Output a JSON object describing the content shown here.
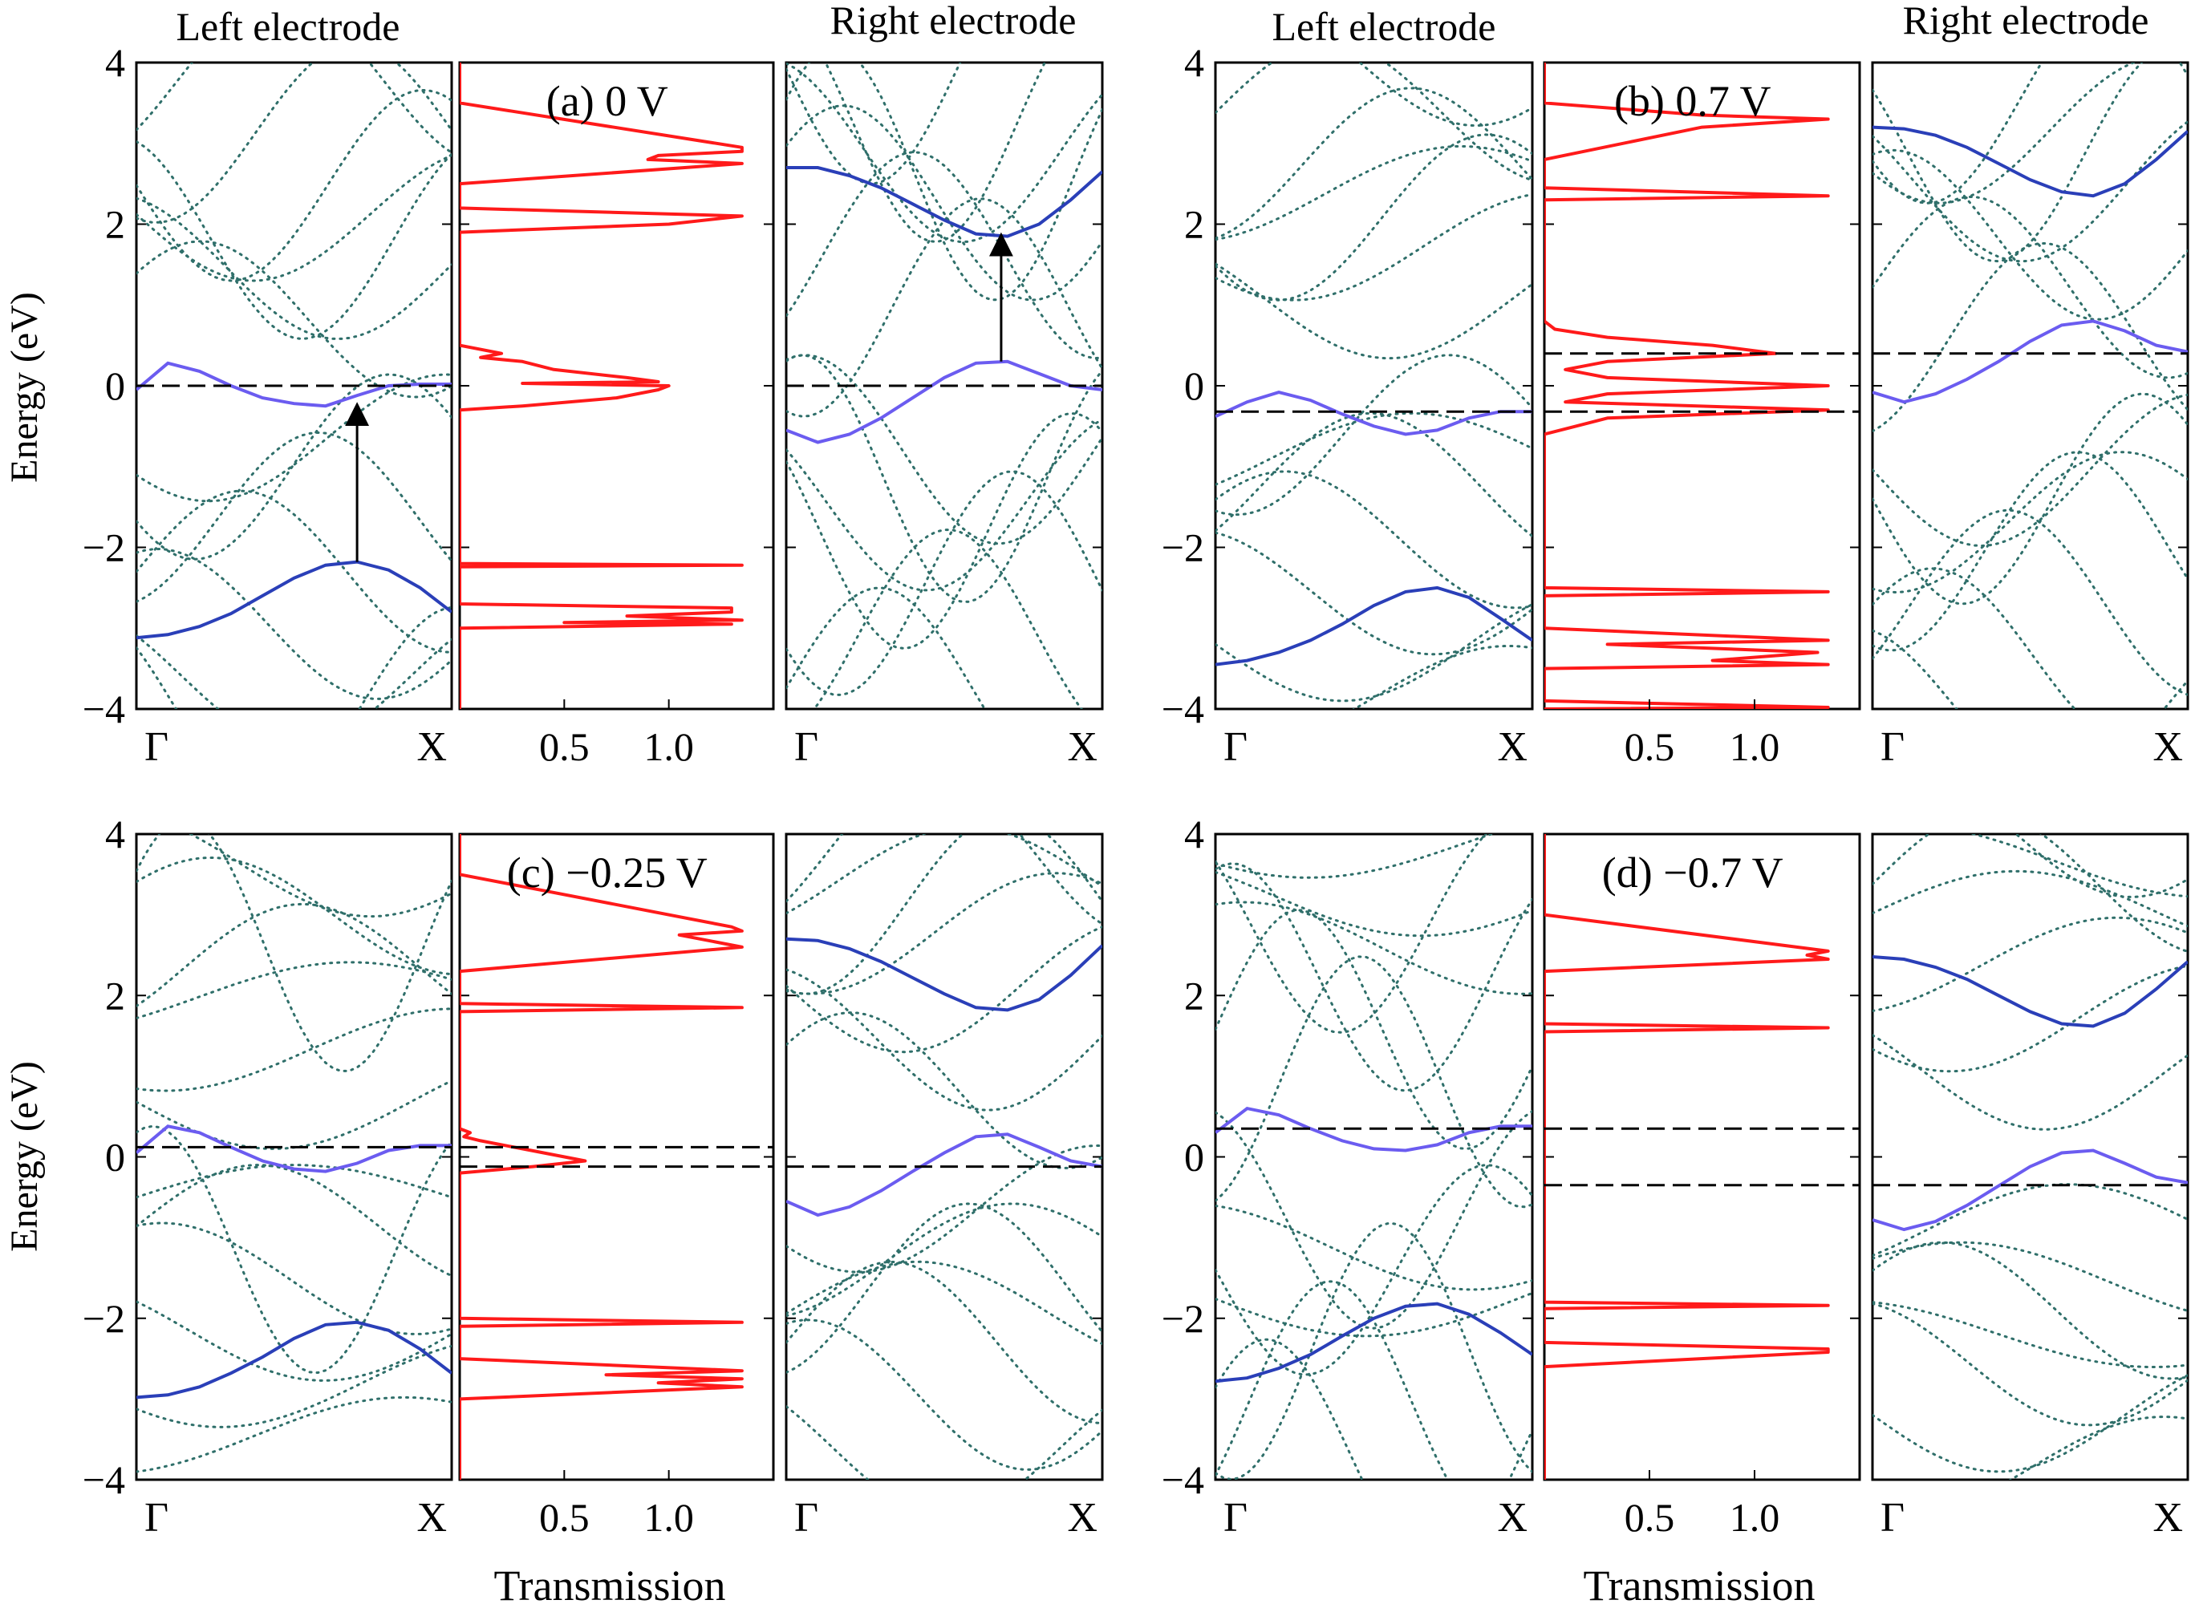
{
  "figure": {
    "y_axis_label": "Energy (eV)",
    "x_axis_label_transmission": "Transmission",
    "left_electrode_title": "Left electrode",
    "right_electrode_title": "Right electrode",
    "band_tick_start": "Γ",
    "band_tick_end": "X",
    "energy_ticks": [
      "4",
      "2",
      "0",
      "−2",
      "−4"
    ],
    "transmission_ticks": [
      "0.5",
      "1.0"
    ]
  },
  "colors": {
    "band_highlight": "#6b5cf0",
    "band_dark": "#2a3fb8",
    "band_dotted": "#2f6f6a",
    "transmission": "#ff1a1a",
    "fermi_level": "#000000"
  },
  "chart_data": [
    {
      "type": "line",
      "panel": "a",
      "title": "(a) 0 V",
      "bias_V": 0,
      "ylabel": "Energy (eV)",
      "xlabel": "",
      "ylim": [
        -4,
        4
      ],
      "transmission_xlim": [
        0,
        1.5
      ],
      "fermi_levels_left": [
        0
      ],
      "fermi_levels_right": [
        0
      ],
      "left_bands": {
        "upper": {
          "k": [
            0,
            0.1,
            0.2,
            0.3,
            0.4,
            0.5,
            0.6,
            0.7,
            0.8,
            0.9,
            1.0
          ],
          "E": [
            -0.05,
            0.28,
            0.18,
            0.0,
            -0.15,
            -0.22,
            -0.25,
            -0.12,
            0.0,
            0.02,
            0.02
          ]
        },
        "lower": {
          "k": [
            0,
            0.1,
            0.2,
            0.3,
            0.4,
            0.5,
            0.6,
            0.7,
            0.8,
            0.9,
            1.0
          ],
          "E": [
            -3.12,
            -3.08,
            -2.98,
            -2.82,
            -2.6,
            -2.38,
            -2.22,
            -2.18,
            -2.28,
            -2.5,
            -2.8
          ]
        },
        "arrow": {
          "k": 0.7,
          "from": -2.18,
          "to": -0.25
        }
      },
      "right_bands": {
        "upper": {
          "k": [
            0,
            0.1,
            0.2,
            0.3,
            0.4,
            0.5,
            0.6,
            0.7,
            0.8,
            0.9,
            1.0
          ],
          "E": [
            2.7,
            2.7,
            2.6,
            2.45,
            2.25,
            2.05,
            1.88,
            1.85,
            2.0,
            2.3,
            2.65
          ]
        },
        "lower": {
          "k": [
            0,
            0.1,
            0.2,
            0.3,
            0.4,
            0.5,
            0.6,
            0.7,
            0.8,
            0.9,
            1.0
          ],
          "E": [
            -0.55,
            -0.7,
            -0.6,
            -0.4,
            -0.15,
            0.1,
            0.28,
            0.3,
            0.15,
            0.0,
            -0.05
          ]
        },
        "arrow": {
          "k": 0.68,
          "from": 0.3,
          "to": 1.85
        }
      },
      "transmission": {
        "E": [
          -4.0,
          -3.0,
          -2.95,
          -2.93,
          -2.9,
          -2.85,
          -2.8,
          -2.75,
          -2.7,
          -2.5,
          -2.24,
          -2.22,
          -2.2,
          -2.0,
          -0.3,
          -0.25,
          -0.15,
          -0.05,
          0.0,
          0.03,
          0.05,
          0.1,
          0.2,
          0.3,
          0.35,
          0.4,
          0.5,
          1.0,
          1.9,
          1.95,
          2.0,
          2.1,
          2.2,
          2.5,
          2.75,
          2.8,
          2.85,
          2.9,
          2.95,
          3.5,
          4.0
        ],
        "T": [
          0,
          0,
          1.3,
          0.5,
          1.35,
          0.8,
          1.3,
          1.3,
          0,
          0,
          0,
          1.35,
          0,
          0,
          0,
          0.3,
          0.75,
          0.95,
          1.0,
          0.3,
          0.95,
          0.8,
          0.45,
          0.3,
          0.1,
          0.2,
          0,
          0,
          0,
          0.5,
          1.0,
          1.35,
          0,
          0,
          1.35,
          0.9,
          0.95,
          1.35,
          1.35,
          0,
          0
        ]
      }
    },
    {
      "type": "line",
      "panel": "b",
      "title": "(b) 0.7 V",
      "bias_V": 0.7,
      "ylabel": "Energy (eV)",
      "xlabel": "",
      "ylim": [
        -4,
        4
      ],
      "transmission_xlim": [
        0,
        1.5
      ],
      "fermi_levels_left": [
        -0.32
      ],
      "fermi_levels_right": [
        0.4
      ],
      "left_bands": {
        "upper": {
          "k": [
            0,
            0.1,
            0.2,
            0.3,
            0.4,
            0.5,
            0.6,
            0.7,
            0.8,
            0.9,
            1.0
          ],
          "E": [
            -0.38,
            -0.2,
            -0.08,
            -0.18,
            -0.35,
            -0.5,
            -0.6,
            -0.55,
            -0.4,
            -0.32,
            -0.32
          ]
        },
        "lower": {
          "k": [
            0,
            0.1,
            0.2,
            0.3,
            0.4,
            0.5,
            0.6,
            0.7,
            0.8,
            0.9,
            1.0
          ],
          "E": [
            -3.45,
            -3.4,
            -3.3,
            -3.15,
            -2.95,
            -2.72,
            -2.55,
            -2.5,
            -2.62,
            -2.88,
            -3.15
          ]
        }
      },
      "right_bands": {
        "upper": {
          "k": [
            0,
            0.1,
            0.2,
            0.3,
            0.4,
            0.5,
            0.6,
            0.7,
            0.8,
            0.9,
            1.0
          ],
          "E": [
            3.2,
            3.18,
            3.1,
            2.95,
            2.75,
            2.55,
            2.4,
            2.35,
            2.5,
            2.8,
            3.15
          ]
        },
        "lower": {
          "k": [
            0,
            0.1,
            0.2,
            0.3,
            0.4,
            0.5,
            0.6,
            0.7,
            0.8,
            0.9,
            1.0
          ],
          "E": [
            -0.08,
            -0.2,
            -0.1,
            0.08,
            0.3,
            0.55,
            0.75,
            0.8,
            0.68,
            0.5,
            0.42
          ]
        }
      },
      "transmission": {
        "E": [
          -4.0,
          -3.98,
          -3.9,
          -3.5,
          -3.45,
          -3.4,
          -3.3,
          -3.2,
          -3.15,
          -3.0,
          -2.6,
          -2.55,
          -2.5,
          -2.0,
          -0.6,
          -0.5,
          -0.4,
          -0.3,
          -0.2,
          -0.1,
          0.0,
          0.1,
          0.2,
          0.3,
          0.4,
          0.5,
          0.6,
          0.7,
          0.8,
          1.0,
          2.3,
          2.35,
          2.45,
          2.6,
          2.8,
          3.2,
          3.3,
          3.35,
          3.5,
          4.0
        ],
        "T": [
          0,
          1.35,
          0,
          0,
          1.35,
          0.8,
          1.3,
          0.3,
          1.35,
          0,
          0,
          1.35,
          0,
          0,
          0,
          0.15,
          0.3,
          1.35,
          0.1,
          0.3,
          1.35,
          0.3,
          0.1,
          0.3,
          1.1,
          0.8,
          0.3,
          0.05,
          0,
          0,
          0,
          1.35,
          0,
          0,
          0,
          0.75,
          1.35,
          0.75,
          0,
          0
        ]
      }
    },
    {
      "type": "line",
      "panel": "c",
      "title": "(c) −0.25 V",
      "bias_V": -0.25,
      "ylabel": "Energy (eV)",
      "xlabel": "Transmission",
      "ylim": [
        -4,
        4
      ],
      "transmission_xlim": [
        0,
        1.5
      ],
      "fermi_levels_left": [
        0.12
      ],
      "fermi_levels_right": [
        -0.12
      ],
      "left_bands": {
        "upper": {
          "k": [
            0,
            0.1,
            0.2,
            0.3,
            0.4,
            0.5,
            0.6,
            0.7,
            0.8,
            0.9,
            1.0
          ],
          "E": [
            0.05,
            0.38,
            0.3,
            0.12,
            -0.05,
            -0.15,
            -0.18,
            -0.08,
            0.08,
            0.14,
            0.14
          ]
        },
        "lower": {
          "k": [
            0,
            0.1,
            0.2,
            0.3,
            0.4,
            0.5,
            0.6,
            0.7,
            0.8,
            0.9,
            1.0
          ],
          "E": [
            -2.98,
            -2.95,
            -2.85,
            -2.68,
            -2.48,
            -2.25,
            -2.08,
            -2.05,
            -2.15,
            -2.38,
            -2.68
          ]
        }
      },
      "right_bands": {
        "upper": {
          "k": [
            0,
            0.1,
            0.2,
            0.3,
            0.4,
            0.5,
            0.6,
            0.7,
            0.8,
            0.9,
            1.0
          ],
          "E": [
            2.7,
            2.68,
            2.58,
            2.42,
            2.22,
            2.02,
            1.85,
            1.82,
            1.95,
            2.25,
            2.62
          ]
        },
        "lower": {
          "k": [
            0,
            0.1,
            0.2,
            0.3,
            0.4,
            0.5,
            0.6,
            0.7,
            0.8,
            0.9,
            1.0
          ],
          "E": [
            -0.55,
            -0.72,
            -0.62,
            -0.42,
            -0.18,
            0.05,
            0.25,
            0.28,
            0.12,
            -0.05,
            -0.12
          ]
        }
      },
      "transmission": {
        "E": [
          -4.0,
          -3.0,
          -2.85,
          -2.8,
          -2.75,
          -2.7,
          -2.65,
          -2.5,
          -2.1,
          -2.05,
          -2.0,
          -0.2,
          -0.12,
          -0.05,
          0.1,
          0.2,
          0.25,
          0.3,
          0.35,
          1.5,
          1.8,
          1.85,
          1.9,
          2.3,
          2.6,
          2.7,
          2.75,
          2.8,
          2.85,
          3.5,
          4.0
        ],
        "T": [
          0,
          0,
          1.35,
          0.95,
          1.35,
          0.7,
          1.35,
          0,
          0,
          1.35,
          0,
          0,
          0.35,
          0.6,
          0.3,
          0.1,
          0.02,
          0.05,
          0,
          0,
          0,
          1.35,
          0,
          0,
          1.35,
          1.15,
          1.05,
          1.35,
          1.3,
          0,
          0
        ]
      }
    },
    {
      "type": "line",
      "panel": "d",
      "title": "(d) −0.7 V",
      "bias_V": -0.7,
      "ylabel": "Energy (eV)",
      "xlabel": "Transmission",
      "ylim": [
        -4,
        4
      ],
      "transmission_xlim": [
        0,
        1.5
      ],
      "fermi_levels_left": [
        0.35
      ],
      "fermi_levels_right": [
        -0.35
      ],
      "left_bands": {
        "upper": {
          "k": [
            0,
            0.1,
            0.2,
            0.3,
            0.4,
            0.5,
            0.6,
            0.7,
            0.8,
            0.9,
            1.0
          ],
          "E": [
            0.3,
            0.6,
            0.52,
            0.35,
            0.2,
            0.1,
            0.08,
            0.15,
            0.3,
            0.38,
            0.38
          ]
        },
        "lower": {
          "k": [
            0,
            0.1,
            0.2,
            0.3,
            0.4,
            0.5,
            0.6,
            0.7,
            0.8,
            0.9,
            1.0
          ],
          "E": [
            -2.78,
            -2.74,
            -2.62,
            -2.45,
            -2.22,
            -2.0,
            -1.85,
            -1.82,
            -1.95,
            -2.18,
            -2.45
          ]
        }
      },
      "right_bands": {
        "upper": {
          "k": [
            0,
            0.1,
            0.2,
            0.3,
            0.4,
            0.5,
            0.6,
            0.7,
            0.8,
            0.9,
            1.0
          ],
          "E": [
            2.48,
            2.45,
            2.35,
            2.2,
            2.0,
            1.8,
            1.65,
            1.62,
            1.78,
            2.08,
            2.42
          ]
        },
        "lower": {
          "k": [
            0,
            0.1,
            0.2,
            0.3,
            0.4,
            0.5,
            0.6,
            0.7,
            0.8,
            0.9,
            1.0
          ],
          "E": [
            -0.78,
            -0.9,
            -0.8,
            -0.6,
            -0.36,
            -0.12,
            0.05,
            0.08,
            -0.08,
            -0.25,
            -0.32
          ]
        }
      },
      "transmission": {
        "E": [
          -4.0,
          -2.6,
          -2.42,
          -2.38,
          -2.3,
          -2.0,
          -1.88,
          -1.84,
          -1.8,
          -1.5,
          1.4,
          1.55,
          1.6,
          1.65,
          1.8,
          2.3,
          2.45,
          2.5,
          2.55,
          3.0,
          4.0
        ],
        "T": [
          0,
          0,
          1.35,
          1.35,
          0,
          0,
          0,
          1.35,
          0,
          0,
          0,
          0,
          1.35,
          0,
          0,
          0,
          1.35,
          1.25,
          1.35,
          0,
          0
        ]
      }
    }
  ]
}
